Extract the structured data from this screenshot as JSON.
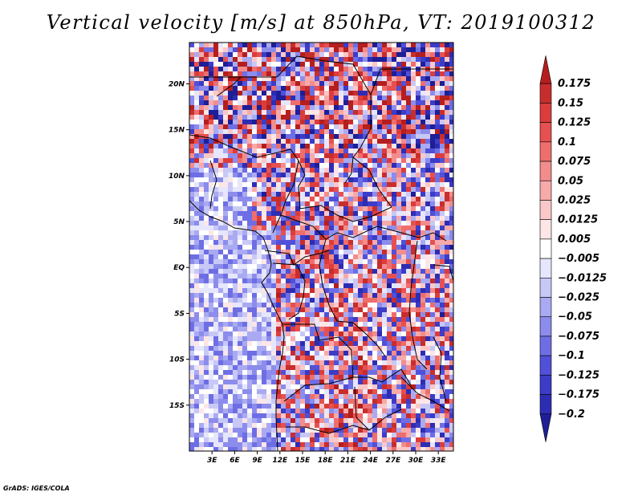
{
  "chart_data": {
    "type": "heatmap",
    "title": "Vertical velocity [m/s] at 850hPa, VT: 2019100312",
    "xlabel": "",
    "ylabel": "",
    "lon_range": [
      0,
      35
    ],
    "lat_range": [
      -20,
      24.5
    ],
    "x_ticks": [
      {
        "value": 3,
        "label": "3E"
      },
      {
        "value": 6,
        "label": "6E"
      },
      {
        "value": 9,
        "label": "9E"
      },
      {
        "value": 12,
        "label": "12E"
      },
      {
        "value": 15,
        "label": "15E"
      },
      {
        "value": 18,
        "label": "18E"
      },
      {
        "value": 21,
        "label": "21E"
      },
      {
        "value": 24,
        "label": "24E"
      },
      {
        "value": 27,
        "label": "27E"
      },
      {
        "value": 30,
        "label": "30E"
      },
      {
        "value": 33,
        "label": "33E"
      }
    ],
    "y_ticks": [
      {
        "value": 20,
        "label": "20N"
      },
      {
        "value": 15,
        "label": "15N"
      },
      {
        "value": 10,
        "label": "10N"
      },
      {
        "value": 5,
        "label": "5N"
      },
      {
        "value": 0,
        "label": "EQ"
      },
      {
        "value": -5,
        "label": "5S"
      },
      {
        "value": -10,
        "label": "10S"
      },
      {
        "value": -15,
        "label": "15S"
      }
    ],
    "colorbar": {
      "levels": [
        "0.175",
        "0.15",
        "0.125",
        "0.1",
        "0.075",
        "0.05",
        "0.025",
        "0.0125",
        "0.005",
        "−0.005",
        "−0.0125",
        "−0.025",
        "−0.05",
        "−0.075",
        "−0.1",
        "−0.125",
        "−0.175",
        "−0.2"
      ],
      "colors_top_to_bottom": [
        "#b41e1e",
        "#c82d2d",
        "#dc3c3c",
        "#e65050",
        "#ee6e6e",
        "#f38c8c",
        "#f7aaaa",
        "#fac8c8",
        "#fde6e6",
        "#ffffff",
        "#e6e6fc",
        "#c8c8f7",
        "#aaaaf2",
        "#8c8cec",
        "#6e6ee4",
        "#5050d8",
        "#3c3cc8",
        "#2d2db4",
        "#1e1e96"
      ]
    },
    "field_summary": "Noisy small-scale mix of upward (red, positive) and downward (blue, negative) vertical velocity; stronger red streaks over the Sahara/Chad region in the north and over southern Africa, weaker light-blue values over the Gulf of Guinea and South Atlantic ocean."
  },
  "footer": {
    "credit": "GrADS: IGES/COLA"
  },
  "colors": {
    "upward": "#dc3c3c",
    "downward": "#5050d8",
    "neutral": "#ffffff"
  }
}
